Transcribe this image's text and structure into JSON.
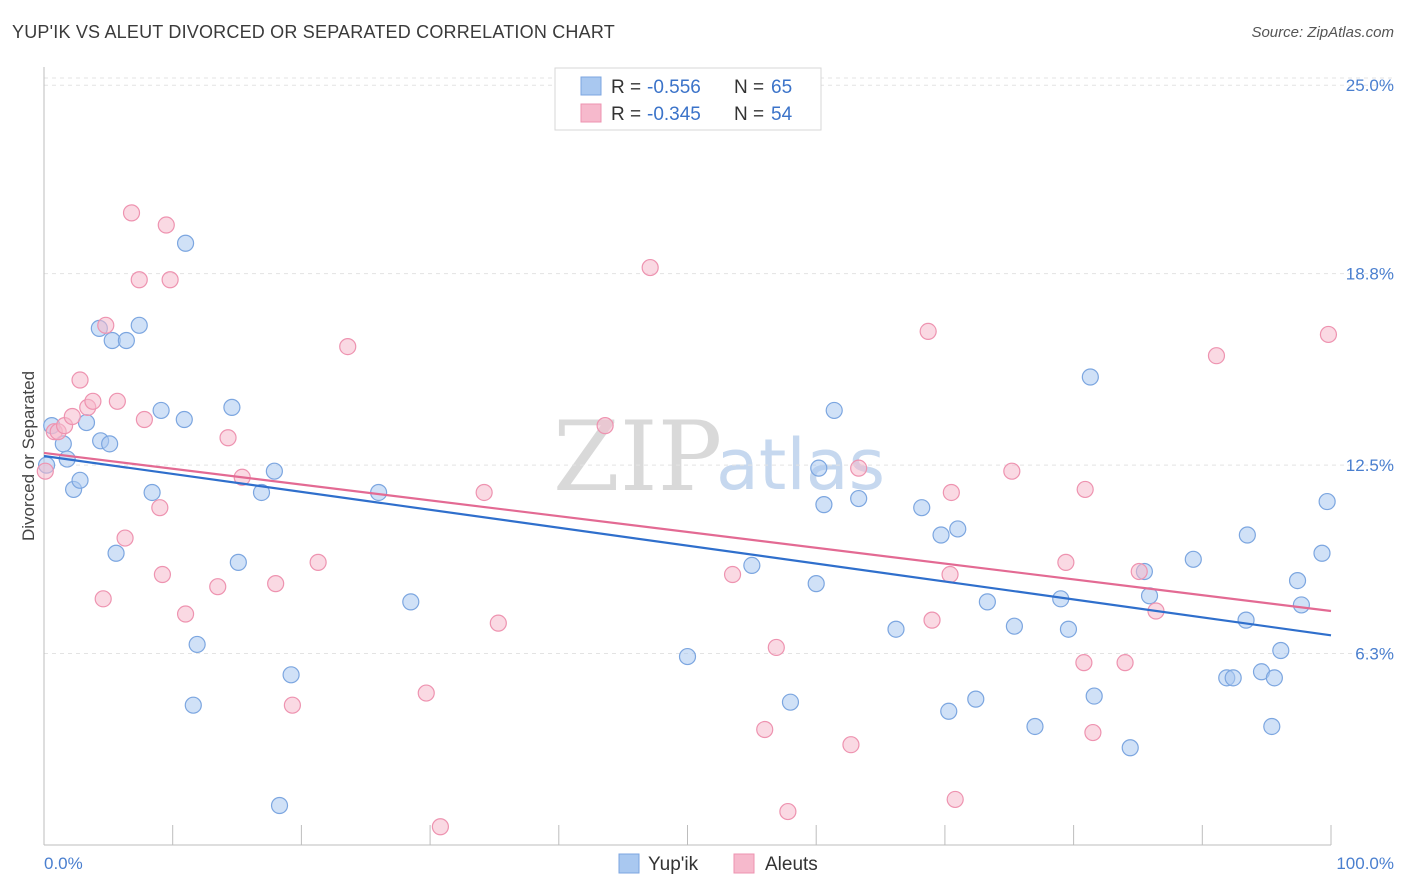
{
  "header": {
    "title": "YUP'IK VS ALEUT DIVORCED OR SEPARATED CORRELATION CHART",
    "source": "Source: ZipAtlas.com"
  },
  "watermark": {
    "zip": "ZIP",
    "atlas": "atlas"
  },
  "colors": {
    "blue_fill": "#a9c8f0",
    "blue_stroke": "#7ca6e0",
    "blue_line": "#2f6fcc",
    "pink_fill": "#f6b9cc",
    "pink_stroke": "#ee93b0",
    "pink_line": "#e36a93"
  },
  "legend": {
    "rows": [
      {
        "r_label": "R = ",
        "r_value": "-0.556",
        "n_label": "N = ",
        "n_value": "65"
      },
      {
        "r_label": "R = ",
        "r_value": "-0.345",
        "n_label": "N = ",
        "n_value": "54"
      }
    ]
  },
  "bottom_legend": {
    "series1": "Yup'ik",
    "series2": "Aleuts"
  },
  "chart_data": {
    "type": "scatter",
    "title": "YUP'IK VS ALEUT DIVORCED OR SEPARATED CORRELATION CHART",
    "xlabel": "",
    "ylabel": "Divorced or Separated",
    "xlim": [
      0,
      100
    ],
    "ylim": [
      0,
      25.6
    ],
    "x_tick_labels": [
      "0.0%",
      "100.0%"
    ],
    "y_ticks": [
      6.3,
      12.5,
      18.8,
      25.0
    ],
    "y_tick_labels": [
      "6.3%",
      "12.5%",
      "18.8%",
      "25.0%"
    ],
    "series": [
      {
        "name": "Yup'ik",
        "R": -0.556,
        "N": 65,
        "trend": {
          "x": [
            0,
            100
          ],
          "y": [
            12.8,
            6.9
          ]
        },
        "points": [
          [
            0.6,
            13.8
          ],
          [
            1.5,
            13.2
          ],
          [
            1.8,
            12.7
          ],
          [
            2.3,
            11.7
          ],
          [
            2.8,
            12.0
          ],
          [
            3.3,
            13.9
          ],
          [
            4.3,
            17.0
          ],
          [
            4.4,
            13.3
          ],
          [
            5.1,
            13.2
          ],
          [
            5.3,
            16.6
          ],
          [
            6.4,
            16.6
          ],
          [
            7.4,
            17.1
          ],
          [
            5.6,
            9.6
          ],
          [
            8.4,
            11.6
          ],
          [
            9.1,
            14.3
          ],
          [
            10.9,
            14.0
          ],
          [
            11.0,
            19.8
          ],
          [
            11.6,
            4.6
          ],
          [
            11.9,
            6.6
          ],
          [
            14.6,
            14.4
          ],
          [
            15.1,
            9.3
          ],
          [
            16.9,
            11.6
          ],
          [
            17.9,
            12.3
          ],
          [
            18.3,
            1.3
          ],
          [
            19.2,
            5.6
          ],
          [
            26.0,
            11.6
          ],
          [
            28.5,
            8.0
          ],
          [
            50.0,
            6.2
          ],
          [
            55.0,
            9.2
          ],
          [
            58.0,
            4.7
          ],
          [
            60.0,
            8.6
          ],
          [
            60.2,
            12.4
          ],
          [
            60.6,
            11.2
          ],
          [
            61.4,
            14.3
          ],
          [
            63.3,
            11.4
          ],
          [
            66.2,
            7.1
          ],
          [
            68.2,
            11.1
          ],
          [
            69.7,
            10.2
          ],
          [
            70.3,
            4.4
          ],
          [
            71.0,
            10.4
          ],
          [
            72.4,
            4.8
          ],
          [
            73.3,
            8.0
          ],
          [
            75.4,
            7.2
          ],
          [
            77.0,
            3.9
          ],
          [
            79.0,
            8.1
          ],
          [
            79.6,
            7.1
          ],
          [
            81.3,
            15.4
          ],
          [
            81.6,
            4.9
          ],
          [
            84.4,
            3.2
          ],
          [
            85.5,
            9.0
          ],
          [
            85.9,
            8.2
          ],
          [
            89.3,
            9.4
          ],
          [
            91.9,
            5.5
          ],
          [
            92.4,
            5.5
          ],
          [
            93.4,
            7.4
          ],
          [
            93.5,
            10.2
          ],
          [
            94.6,
            5.7
          ],
          [
            95.4,
            3.9
          ],
          [
            95.6,
            5.5
          ],
          [
            96.1,
            6.4
          ],
          [
            97.4,
            8.7
          ],
          [
            97.7,
            7.9
          ],
          [
            99.3,
            9.6
          ],
          [
            99.7,
            11.3
          ],
          [
            0.2,
            12.5
          ]
        ]
      },
      {
        "name": "Aleuts",
        "R": -0.345,
        "N": 54,
        "trend": {
          "x": [
            0,
            100
          ],
          "y": [
            12.9,
            7.7
          ]
        },
        "points": [
          [
            0.8,
            13.6
          ],
          [
            1.1,
            13.6
          ],
          [
            1.6,
            13.8
          ],
          [
            2.2,
            14.1
          ],
          [
            2.8,
            15.3
          ],
          [
            3.4,
            14.4
          ],
          [
            3.8,
            14.6
          ],
          [
            4.6,
            8.1
          ],
          [
            4.8,
            17.1
          ],
          [
            5.7,
            14.6
          ],
          [
            6.3,
            10.1
          ],
          [
            6.8,
            20.8
          ],
          [
            7.4,
            18.6
          ],
          [
            7.8,
            14.0
          ],
          [
            9.0,
            11.1
          ],
          [
            9.5,
            20.4
          ],
          [
            9.2,
            8.9
          ],
          [
            9.8,
            18.6
          ],
          [
            11.0,
            7.6
          ],
          [
            13.5,
            8.5
          ],
          [
            14.3,
            13.4
          ],
          [
            15.4,
            12.1
          ],
          [
            18.0,
            8.6
          ],
          [
            19.3,
            4.6
          ],
          [
            21.3,
            9.3
          ],
          [
            23.6,
            16.4
          ],
          [
            29.7,
            5.0
          ],
          [
            30.8,
            0.6
          ],
          [
            34.2,
            11.6
          ],
          [
            35.3,
            7.3
          ],
          [
            43.6,
            13.8
          ],
          [
            47.1,
            19.0
          ],
          [
            53.5,
            8.9
          ],
          [
            56.0,
            3.8
          ],
          [
            56.9,
            6.5
          ],
          [
            57.8,
            1.1
          ],
          [
            62.7,
            3.3
          ],
          [
            63.3,
            12.4
          ],
          [
            68.7,
            16.9
          ],
          [
            69.0,
            7.4
          ],
          [
            70.4,
            8.9
          ],
          [
            70.5,
            11.6
          ],
          [
            70.8,
            1.5
          ],
          [
            75.2,
            12.3
          ],
          [
            79.4,
            9.3
          ],
          [
            80.8,
            6.0
          ],
          [
            80.9,
            11.7
          ],
          [
            81.5,
            3.7
          ],
          [
            84.0,
            6.0
          ],
          [
            85.1,
            9.0
          ],
          [
            86.4,
            7.7
          ],
          [
            91.1,
            16.1
          ],
          [
            99.8,
            16.8
          ],
          [
            0.1,
            12.3
          ]
        ]
      }
    ]
  }
}
